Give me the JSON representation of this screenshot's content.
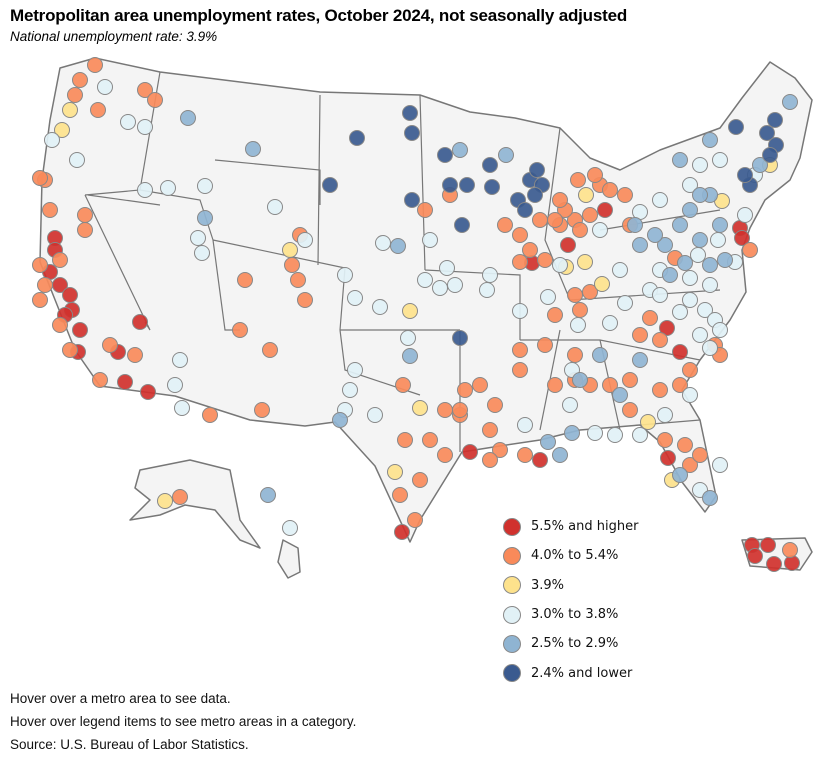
{
  "header": {
    "title": "Metropolitan area unemployment rates, October 2024, not seasonally adjusted",
    "subtitle": "National unemployment rate: 3.9%"
  },
  "legend": {
    "items": [
      {
        "label": "5.5% and higher",
        "color": "#d0312d"
      },
      {
        "label": "4.0% to 5.4%",
        "color": "#f98a5a"
      },
      {
        "label": "3.9%",
        "color": "#fde28c"
      },
      {
        "label": "3.0% to 3.8%",
        "color": "#e1f1f6"
      },
      {
        "label": "2.5% to 2.9%",
        "color": "#8fb4d2"
      },
      {
        "label": "2.4% and lower",
        "color": "#3a5a8f"
      }
    ]
  },
  "notes": {
    "line1": "Hover over a metro area to see data.",
    "line2": "Hover over legend items to see metro areas in a category.",
    "source": "Source: U.S. Bureau of Labor Statistics."
  },
  "colors": {
    "land": "#f4f4f4",
    "border": "#777777"
  }
}
